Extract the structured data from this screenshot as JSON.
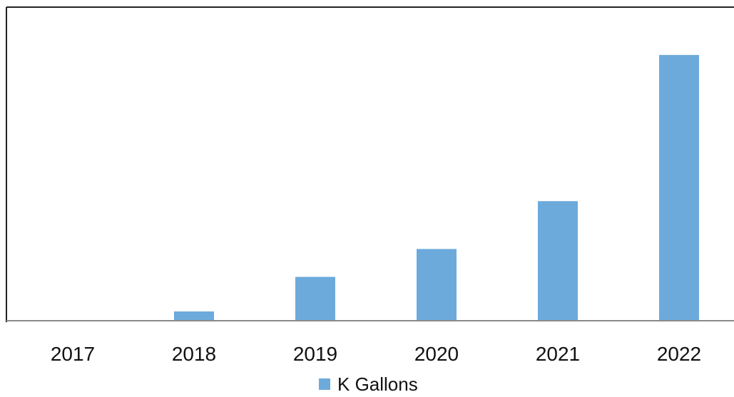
{
  "chart_data": {
    "type": "bar",
    "categories": [
      "2017",
      "2018",
      "2019",
      "2020",
      "2021",
      "2022"
    ],
    "series": [
      {
        "name": "K Gallons",
        "values": [
          0,
          3.5,
          16.5,
          27,
          45,
          100
        ],
        "color": "#6daadc"
      }
    ],
    "title": "",
    "xlabel": "",
    "ylabel": "",
    "ylim": [
      0,
      118
    ],
    "grid": false,
    "legend": "bottom"
  }
}
